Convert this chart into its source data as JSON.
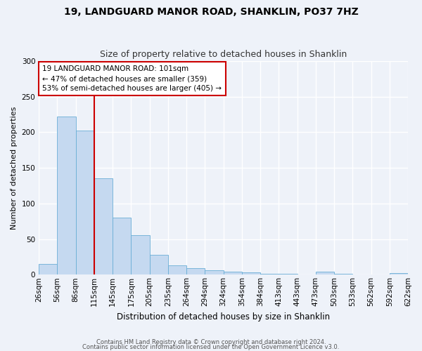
{
  "title": "19, LANDGUARD MANOR ROAD, SHANKLIN, PO37 7HZ",
  "subtitle": "Size of property relative to detached houses in Shanklin",
  "xlabel": "Distribution of detached houses by size in Shanklin",
  "ylabel": "Number of detached properties",
  "bar_values": [
    15,
    222,
    202,
    135,
    80,
    55,
    28,
    13,
    9,
    6,
    4,
    3,
    1,
    1,
    0,
    4,
    1,
    0,
    0,
    2
  ],
  "bar_labels": [
    "26sqm",
    "56sqm",
    "86sqm",
    "115sqm",
    "145sqm",
    "175sqm",
    "205sqm",
    "235sqm",
    "264sqm",
    "294sqm",
    "324sqm",
    "354sqm",
    "384sqm",
    "413sqm",
    "443sqm",
    "473sqm",
    "503sqm",
    "533sqm",
    "562sqm",
    "592sqm",
    "622sqm"
  ],
  "bar_color": "#c5d9f0",
  "bar_edge_color": "#6aaed6",
  "ylim": [
    0,
    300
  ],
  "yticks": [
    0,
    50,
    100,
    150,
    200,
    250,
    300
  ],
  "red_line_x": 2.5,
  "annotation_line1": "19 LANDGUARD MANOR ROAD: 101sqm",
  "annotation_line2": "← 47% of detached houses are smaller (359)",
  "annotation_line3": "53% of semi-detached houses are larger (405) →",
  "annotation_box_color": "#ffffff",
  "annotation_box_edge_color": "#cc0000",
  "footer1": "Contains HM Land Registry data © Crown copyright and database right 2024.",
  "footer2": "Contains public sector information licensed under the Open Government Licence v3.0.",
  "background_color": "#eef2f9",
  "grid_color": "#ffffff",
  "title_fontsize": 10,
  "subtitle_fontsize": 9,
  "tick_fontsize": 7.5,
  "ylabel_fontsize": 8,
  "xlabel_fontsize": 8.5
}
